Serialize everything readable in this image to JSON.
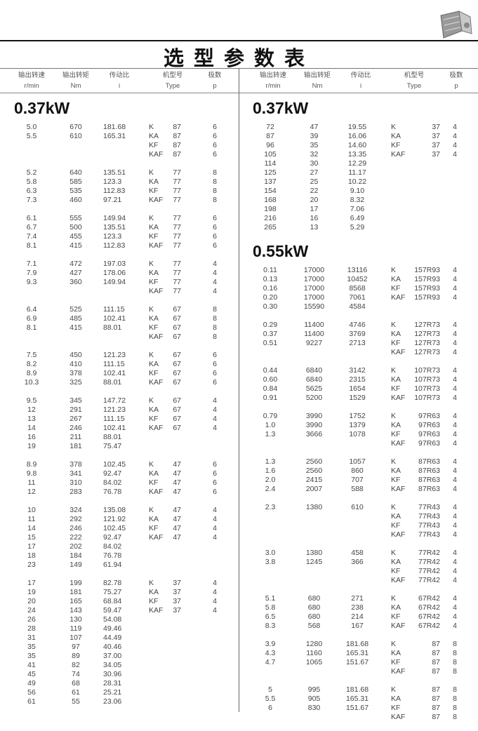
{
  "title": "选型参数表",
  "header": {
    "speed": "输出转速",
    "speed_unit": "r/min",
    "torque": "输出转矩",
    "torque_unit": "Nm",
    "ratio": "传动比",
    "ratio_unit": "i",
    "type": "机型号",
    "type_unit": "Type",
    "poles": "极数",
    "poles_unit": "p"
  },
  "columns": [
    {
      "sections": [
        {
          "heading": "0.37kW",
          "groups": [
            [
              [
                "5.0",
                "670",
                "181.68",
                "K",
                "87",
                "6"
              ],
              [
                "5.5",
                "610",
                "165.31",
                "KA",
                "87",
                "6"
              ],
              [
                "",
                "",
                "",
                "KF",
                "87",
                "6"
              ],
              [
                "",
                "",
                "",
                "KAF",
                "87",
                "6"
              ]
            ],
            [
              [
                "5.2",
                "640",
                "135.51",
                "K",
                "77",
                "8"
              ],
              [
                "5.8",
                "585",
                "123.3",
                "KA",
                "77",
                "8"
              ],
              [
                "6.3",
                "535",
                "112.83",
                "KF",
                "77",
                "8"
              ],
              [
                "7.3",
                "460",
                "97.21",
                "KAF",
                "77",
                "8"
              ]
            ],
            [
              [
                "6.1",
                "555",
                "149.94",
                "K",
                "77",
                "6"
              ],
              [
                "6.7",
                "500",
                "135.51",
                "KA",
                "77",
                "6"
              ],
              [
                "7.4",
                "455",
                "123.3",
                "KF",
                "77",
                "6"
              ],
              [
                "8.1",
                "415",
                "112.83",
                "KAF",
                "77",
                "6"
              ]
            ],
            [
              [
                "7.1",
                "472",
                "197.03",
                "K",
                "77",
                "4"
              ],
              [
                "7.9",
                "427",
                "178.06",
                "KA",
                "77",
                "4"
              ],
              [
                "9.3",
                "360",
                "149.94",
                "KF",
                "77",
                "4"
              ],
              [
                "",
                "",
                "",
                "KAF",
                "77",
                "4"
              ]
            ],
            [
              [
                "6.4",
                "525",
                "111.15",
                "K",
                "67",
                "8"
              ],
              [
                "6.9",
                "485",
                "102.41",
                "KA",
                "67",
                "8"
              ],
              [
                "8.1",
                "415",
                "88.01",
                "KF",
                "67",
                "8"
              ],
              [
                "",
                "",
                "",
                "KAF",
                "67",
                "8"
              ]
            ],
            [
              [
                "7.5",
                "450",
                "121.23",
                "K",
                "67",
                "6"
              ],
              [
                "8.2",
                "410",
                "111.15",
                "KA",
                "67",
                "6"
              ],
              [
                "8.9",
                "378",
                "102.41",
                "KF",
                "67",
                "6"
              ],
              [
                "10.3",
                "325",
                "88.01",
                "KAF",
                "67",
                "6"
              ]
            ],
            [
              [
                "9.5",
                "345",
                "147.72",
                "K",
                "67",
                "4"
              ],
              [
                "12",
                "291",
                "121.23",
                "KA",
                "67",
                "4"
              ],
              [
                "13",
                "267",
                "111.15",
                "KF",
                "67",
                "4"
              ],
              [
                "14",
                "246",
                "102.41",
                "KAF",
                "67",
                "4"
              ],
              [
                "16",
                "211",
                "88.01",
                "",
                "",
                ""
              ],
              [
                "19",
                "181",
                "75.47",
                "",
                "",
                ""
              ]
            ],
            [
              [
                "8.9",
                "378",
                "102.45",
                "K",
                "47",
                "6"
              ],
              [
                "9.8",
                "341",
                "92.47",
                "KA",
                "47",
                "6"
              ],
              [
                "11",
                "310",
                "84.02",
                "KF",
                "47",
                "6"
              ],
              [
                "12",
                "283",
                "76.78",
                "KAF",
                "47",
                "6"
              ]
            ],
            [
              [
                "10",
                "324",
                "135.08",
                "K",
                "47",
                "4"
              ],
              [
                "11",
                "292",
                "121.92",
                "KA",
                "47",
                "4"
              ],
              [
                "14",
                "246",
                "102.45",
                "KF",
                "47",
                "4"
              ],
              [
                "15",
                "222",
                "92.47",
                "KAF",
                "47",
                "4"
              ],
              [
                "17",
                "202",
                "84.02",
                "",
                "",
                ""
              ],
              [
                "18",
                "184",
                "76.78",
                "",
                "",
                ""
              ],
              [
                "23",
                "149",
                "61.94",
                "",
                "",
                ""
              ]
            ],
            [
              [
                "17",
                "199",
                "82.78",
                "K",
                "37",
                "4"
              ],
              [
                "19",
                "181",
                "75.27",
                "KA",
                "37",
                "4"
              ],
              [
                "20",
                "165",
                "68.84",
                "KF",
                "37",
                "4"
              ],
              [
                "24",
                "143",
                "59.47",
                "KAF",
                "37",
                "4"
              ],
              [
                "26",
                "130",
                "54.08",
                "",
                "",
                ""
              ],
              [
                "28",
                "119",
                "49.46",
                "",
                "",
                ""
              ],
              [
                "31",
                "107",
                "44.49",
                "",
                "",
                ""
              ],
              [
                "35",
                "97",
                "40.46",
                "",
                "",
                ""
              ],
              [
                "35",
                "89",
                "37.00",
                "",
                "",
                ""
              ],
              [
                "41",
                "82",
                "34.05",
                "",
                "",
                ""
              ],
              [
                "45",
                "74",
                "30.96",
                "",
                "",
                ""
              ],
              [
                "49",
                "68",
                "28.31",
                "",
                "",
                ""
              ],
              [
                "56",
                "61",
                "25.21",
                "",
                "",
                ""
              ],
              [
                "61",
                "55",
                "23.06",
                "",
                "",
                ""
              ]
            ]
          ]
        }
      ]
    },
    {
      "sections": [
        {
          "heading": "0.37kW",
          "groups": [
            [
              [
                "72",
                "47",
                "19.55",
                "K",
                "37",
                "4"
              ],
              [
                "87",
                "39",
                "16.06",
                "KA",
                "37",
                "4"
              ],
              [
                "96",
                "35",
                "14.60",
                "KF",
                "37",
                "4"
              ],
              [
                "105",
                "32",
                "13.35",
                "KAF",
                "37",
                "4"
              ],
              [
                "114",
                "30",
                "12.29",
                "",
                "",
                ""
              ],
              [
                "125",
                "27",
                "11.17",
                "",
                "",
                ""
              ],
              [
                "137",
                "25",
                "10.22",
                "",
                "",
                ""
              ],
              [
                "154",
                "22",
                "9.10",
                "",
                "",
                ""
              ],
              [
                "168",
                "20",
                "8.32",
                "",
                "",
                ""
              ],
              [
                "198",
                "17",
                "7.06",
                "",
                "",
                ""
              ],
              [
                "216",
                "16",
                "6.49",
                "",
                "",
                ""
              ],
              [
                "265",
                "13",
                "5.29",
                "",
                "",
                ""
              ]
            ]
          ]
        },
        {
          "heading": "0.55kW",
          "groups": [
            [
              [
                "0.11",
                "17000",
                "13116",
                "K",
                "157R93",
                "4"
              ],
              [
                "0.13",
                "17000",
                "10452",
                "KA",
                "157R93",
                "4"
              ],
              [
                "0.16",
                "17000",
                "8568",
                "KF",
                "157R93",
                "4"
              ],
              [
                "0.20",
                "17000",
                "7061",
                "KAF",
                "157R93",
                "4"
              ],
              [
                "0.30",
                "15590",
                "4584",
                "",
                "",
                ""
              ]
            ],
            [
              [
                "0.29",
                "11400",
                "4746",
                "K",
                "127R73",
                "4"
              ],
              [
                "0.37",
                "11400",
                "3769",
                "KA",
                "127R73",
                "4"
              ],
              [
                "0.51",
                "9227",
                "2713",
                "KF",
                "127R73",
                "4"
              ],
              [
                "",
                "",
                "",
                "KAF",
                "127R73",
                "4"
              ]
            ],
            [
              [
                "0.44",
                "6840",
                "3142",
                "K",
                "107R73",
                "4"
              ],
              [
                "0.60",
                "6840",
                "2315",
                "KA",
                "107R73",
                "4"
              ],
              [
                "0.84",
                "5625",
                "1654",
                "KF",
                "107R73",
                "4"
              ],
              [
                "0.91",
                "5200",
                "1529",
                "KAF",
                "107R73",
                "4"
              ]
            ],
            [
              [
                "0.79",
                "3990",
                "1752",
                "K",
                "97R63",
                "4"
              ],
              [
                "1.0",
                "3990",
                "1379",
                "KA",
                "97R63",
                "4"
              ],
              [
                "1.3",
                "3666",
                "1078",
                "KF",
                "97R63",
                "4"
              ],
              [
                "",
                "",
                "",
                "KAF",
                "97R63",
                "4"
              ]
            ],
            [
              [
                "1.3",
                "2560",
                "1057",
                "K",
                "87R63",
                "4"
              ],
              [
                "1.6",
                "2560",
                "860",
                "KA",
                "87R63",
                "4"
              ],
              [
                "2.0",
                "2415",
                "707",
                "KF",
                "87R63",
                "4"
              ],
              [
                "2.4",
                "2007",
                "588",
                "KAF",
                "87R63",
                "4"
              ]
            ],
            [
              [
                "2.3",
                "1380",
                "610",
                "K",
                "77R43",
                "4"
              ],
              [
                "",
                "",
                "",
                "KA",
                "77R43",
                "4"
              ],
              [
                "",
                "",
                "",
                "KF",
                "77R43",
                "4"
              ],
              [
                "",
                "",
                "",
                "KAF",
                "77R43",
                "4"
              ]
            ],
            [
              [
                "3.0",
                "1380",
                "458",
                "K",
                "77R42",
                "4"
              ],
              [
                "3.8",
                "1245",
                "366",
                "KA",
                "77R42",
                "4"
              ],
              [
                "",
                "",
                "",
                "KF",
                "77R42",
                "4"
              ],
              [
                "",
                "",
                "",
                "KAF",
                "77R42",
                "4"
              ]
            ],
            [
              [
                "5.1",
                "680",
                "271",
                "K",
                "67R42",
                "4"
              ],
              [
                "5.8",
                "680",
                "238",
                "KA",
                "67R42",
                "4"
              ],
              [
                "6.5",
                "680",
                "214",
                "KF",
                "67R42",
                "4"
              ],
              [
                "8.3",
                "568",
                "167",
                "KAF",
                "67R42",
                "4"
              ]
            ],
            [
              [
                "3.9",
                "1280",
                "181.68",
                "K",
                "87",
                "8"
              ],
              [
                "4.3",
                "1160",
                "165.31",
                "KA",
                "87",
                "8"
              ],
              [
                "4.7",
                "1065",
                "151.67",
                "KF",
                "87",
                "8"
              ],
              [
                "",
                "",
                "",
                "KAF",
                "87",
                "8"
              ]
            ],
            [
              [
                "5",
                "995",
                "181.68",
                "K",
                "87",
                "8"
              ],
              [
                "5.5",
                "905",
                "165.31",
                "KA",
                "87",
                "8"
              ],
              [
                "6",
                "830",
                "151.67",
                "KF",
                "87",
                "8"
              ],
              [
                "",
                "",
                "",
                "KAF",
                "87",
                "8"
              ]
            ]
          ]
        }
      ]
    }
  ],
  "icons": {
    "product": "gear-reducer-photo"
  }
}
